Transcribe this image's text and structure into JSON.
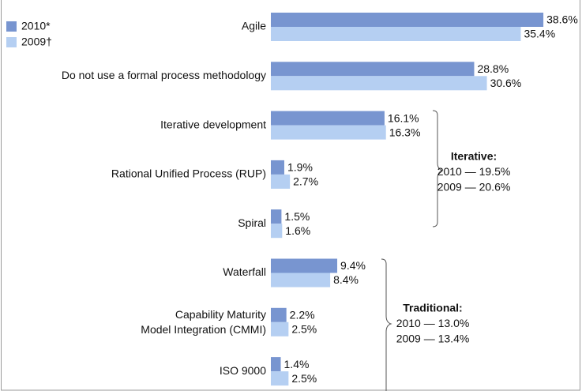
{
  "chart_data": {
    "type": "bar",
    "orientation": "horizontal",
    "categories": [
      "Agile",
      "Do not use a formal process methodology",
      "Iterative development",
      "Rational Unified Process (RUP)",
      "Spiral",
      "Waterfall",
      [
        "Capability Maturity",
        "Model Integration (CMMI)"
      ],
      "ISO 9000"
    ],
    "series": [
      {
        "name": "2010*",
        "color": "#7895d0",
        "values": [
          38.6,
          28.8,
          16.1,
          1.9,
          1.5,
          9.4,
          2.2,
          1.4
        ],
        "value_labels": [
          "38.6%",
          "28.8%",
          "16.1%",
          "1.9%",
          "1.5%",
          "9.4%",
          "2.2%",
          "1.4%"
        ]
      },
      {
        "name": "2009†",
        "color": "#b5cff2",
        "values": [
          35.4,
          30.6,
          16.3,
          2.7,
          1.6,
          8.4,
          2.5,
          2.5
        ],
        "value_labels": [
          "35.4%",
          "30.6%",
          "16.3%",
          "2.7%",
          "1.6%",
          "8.4%",
          "2.5%",
          "2.5%"
        ]
      }
    ],
    "legend": "top-left",
    "annotations": [
      {
        "title": "Iterative:",
        "lines": [
          "2010 — 19.5%",
          "2009 — 20.6%"
        ]
      },
      {
        "title": "Traditional:",
        "lines": [
          "2010 — 13.0%",
          "2009 — 13.4%"
        ]
      }
    ]
  }
}
